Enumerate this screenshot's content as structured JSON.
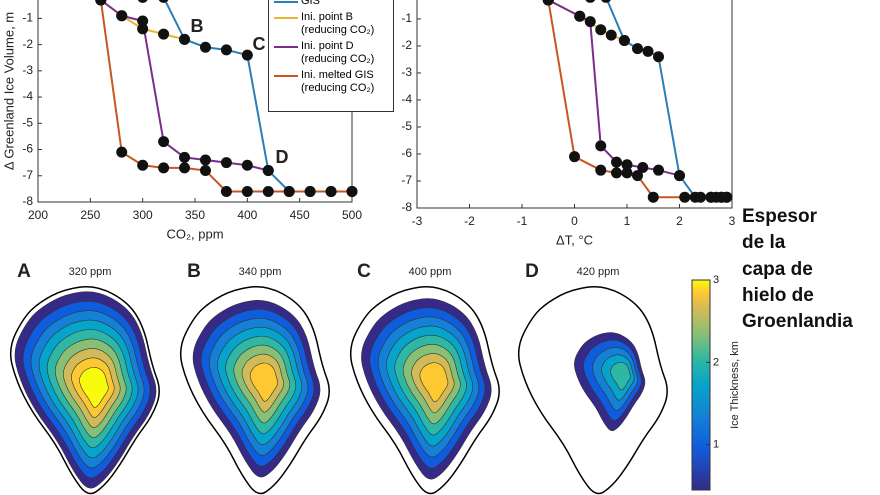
{
  "chart_data": [
    {
      "type": "line",
      "ylabel": "Δ Greenland Ice Volume, m",
      "xlabel": "CO₂, ppm",
      "xlim": [
        200,
        500
      ],
      "xticks": [
        200,
        250,
        300,
        350,
        400,
        450,
        500
      ],
      "ylim": [
        -8,
        -0.3
      ],
      "yticks": [
        -8,
        -7,
        -6,
        -5,
        -4,
        -3,
        -2,
        -1
      ],
      "annotations": [
        "B",
        "C",
        "D"
      ],
      "series": [
        {
          "name": "GIS",
          "color": "#2a7fb8",
          "x": [
            300,
            320,
            340,
            360,
            380,
            400,
            420,
            440,
            460,
            480,
            500
          ],
          "values": [
            -0.2,
            -0.2,
            -1.8,
            -2.1,
            -2.2,
            -2.4,
            -6.8,
            -7.6,
            -7.6,
            -7.6,
            -7.6
          ]
        },
        {
          "name": "Ini. point B (reducing CO₂)",
          "color": "#e8b52b",
          "x": [
            340,
            320,
            300,
            280,
            260
          ],
          "values": [
            -1.8,
            -1.6,
            -1.4,
            -0.9,
            -0.3
          ]
        },
        {
          "name": "Ini. point D (reducing CO₂)",
          "color": "#7b2d8e",
          "x": [
            420,
            400,
            380,
            360,
            340,
            320,
            300,
            280,
            260
          ],
          "values": [
            -6.8,
            -6.6,
            -6.5,
            -6.4,
            -6.3,
            -5.7,
            -1.1,
            -0.9,
            -0.3
          ]
        },
        {
          "name": "Ini. melted GIS (reducing CO₂)",
          "color": "#c8561e",
          "x": [
            500,
            480,
            460,
            440,
            420,
            400,
            380,
            360,
            340,
            320,
            300,
            280,
            260
          ],
          "values": [
            -7.6,
            -7.6,
            -7.6,
            -7.6,
            -7.6,
            -7.6,
            -7.6,
            -6.8,
            -6.7,
            -6.7,
            -6.6,
            -6.1,
            -0.3
          ]
        }
      ]
    },
    {
      "type": "line",
      "xlabel": "ΔT, °C",
      "xlim": [
        -3,
        3
      ],
      "xticks": [
        -3,
        -2,
        -1,
        0,
        1,
        2,
        3
      ],
      "ylim": [
        -8,
        -0.3
      ],
      "yticks": [
        -8,
        -7,
        -6,
        -5,
        -4,
        -3,
        -2,
        -1
      ],
      "series": [
        {
          "color": "#2a7fb8",
          "x": [
            0.3,
            0.6,
            0.95,
            1.2,
            1.4,
            1.6,
            2.0,
            2.3,
            2.6,
            2.8,
            2.9
          ],
          "values": [
            -0.2,
            -0.2,
            -1.8,
            -2.1,
            -2.2,
            -2.4,
            -6.8,
            -7.6,
            -7.6,
            -7.6,
            -7.6
          ]
        },
        {
          "color": "#e8b52b",
          "x": [
            0.95,
            0.7,
            0.5,
            0.1,
            -0.5
          ],
          "values": [
            -1.8,
            -1.6,
            -1.4,
            -0.9,
            -0.3
          ]
        },
        {
          "color": "#7b2d8e",
          "x": [
            2.0,
            1.6,
            1.3,
            1.0,
            0.8,
            0.5,
            0.3,
            0.1,
            -0.5
          ],
          "values": [
            -6.8,
            -6.6,
            -6.5,
            -6.4,
            -6.3,
            -5.7,
            -1.1,
            -0.9,
            -0.3
          ]
        },
        {
          "color": "#c8561e",
          "x": [
            2.9,
            2.8,
            2.7,
            2.6,
            2.4,
            2.1,
            1.5,
            1.2,
            1.0,
            0.8,
            0.5,
            0.0,
            -0.5
          ],
          "values": [
            -7.6,
            -7.6,
            -7.6,
            -7.6,
            -7.6,
            -7.6,
            -7.6,
            -6.8,
            -6.7,
            -6.7,
            -6.6,
            -6.1,
            -0.3
          ]
        }
      ]
    }
  ],
  "maps": [
    {
      "label": "A",
      "title": "320 ppm"
    },
    {
      "label": "B",
      "title": "340 ppm"
    },
    {
      "label": "C",
      "title": "400 ppm"
    },
    {
      "label": "D",
      "title": "420 ppm"
    }
  ],
  "colorbar": {
    "label": "Ice Thickness, km",
    "lim": [
      0.45,
      3
    ],
    "ticks": [
      1,
      2,
      3
    ]
  },
  "caption": [
    "Espesor",
    "de la",
    "capa de",
    "hielo de",
    "Groenlandia"
  ]
}
